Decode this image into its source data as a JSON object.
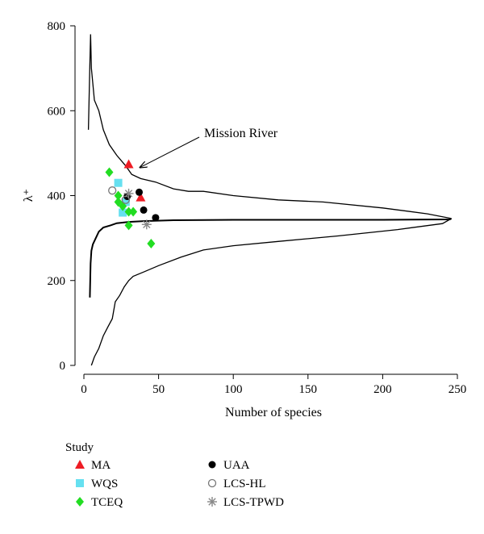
{
  "chart_data": {
    "type": "scatter",
    "xlabel": "Number of species",
    "ylabel": "λ⁺",
    "xlim": [
      0,
      250
    ],
    "ylim": [
      0,
      800
    ],
    "xticks": [
      "0",
      "50",
      "100",
      "150",
      "200",
      "250"
    ],
    "yticks": [
      "0",
      "200",
      "400",
      "600",
      "800"
    ],
    "annotation": {
      "text": "Mission River",
      "points_to": [
        30,
        472
      ]
    },
    "mean_line": [
      [
        4,
        160
      ],
      [
        4.5,
        240
      ],
      [
        5,
        270
      ],
      [
        6,
        285
      ],
      [
        8,
        300
      ],
      [
        10,
        315
      ],
      [
        13,
        325
      ],
      [
        18,
        330
      ],
      [
        22,
        335
      ],
      [
        30,
        338
      ],
      [
        40,
        340
      ],
      [
        60,
        342
      ],
      [
        100,
        343
      ],
      [
        150,
        343
      ],
      [
        200,
        343
      ],
      [
        245,
        344
      ],
      [
        246,
        346
      ]
    ],
    "funnel_upper": [
      [
        3,
        555
      ],
      [
        4,
        710
      ],
      [
        4.5,
        780
      ],
      [
        5,
        700
      ],
      [
        7,
        625
      ],
      [
        10,
        600
      ],
      [
        13,
        555
      ],
      [
        17,
        520
      ],
      [
        22,
        495
      ],
      [
        28,
        470
      ],
      [
        32,
        450
      ],
      [
        38,
        440
      ],
      [
        48,
        432
      ],
      [
        60,
        416
      ],
      [
        70,
        410
      ],
      [
        80,
        410
      ],
      [
        100,
        400
      ],
      [
        130,
        390
      ],
      [
        160,
        385
      ],
      [
        200,
        371
      ],
      [
        230,
        357
      ],
      [
        246,
        346
      ]
    ],
    "funnel_lower": [
      [
        5,
        0
      ],
      [
        7,
        20
      ],
      [
        10,
        40
      ],
      [
        13,
        70
      ],
      [
        16,
        90
      ],
      [
        19,
        110
      ],
      [
        21,
        150
      ],
      [
        24,
        165
      ],
      [
        27,
        185
      ],
      [
        30,
        200
      ],
      [
        33,
        210
      ],
      [
        40,
        220
      ],
      [
        50,
        235
      ],
      [
        65,
        255
      ],
      [
        80,
        272
      ],
      [
        100,
        282
      ],
      [
        130,
        292
      ],
      [
        170,
        305
      ],
      [
        210,
        320
      ],
      [
        240,
        334
      ],
      [
        246,
        346
      ]
    ],
    "series": [
      {
        "name": "MA",
        "marker": "triangle",
        "color": "#ee1c24",
        "points": [
          [
            30,
            474
          ],
          [
            38,
            396
          ]
        ]
      },
      {
        "name": "WQS",
        "marker": "square",
        "color": "#66e0f0",
        "points": [
          [
            23,
            430
          ],
          [
            26,
            360
          ],
          [
            28,
            385
          ]
        ]
      },
      {
        "name": "TCEQ",
        "marker": "diamond",
        "color": "#22dd22",
        "points": [
          [
            17,
            455
          ],
          [
            23,
            400
          ],
          [
            23,
            385
          ],
          [
            26,
            375
          ],
          [
            30,
            362
          ],
          [
            30,
            330
          ],
          [
            33,
            362
          ],
          [
            45,
            287
          ]
        ]
      },
      {
        "name": "UAA",
        "marker": "filled-circle",
        "color": "#000000",
        "points": [
          [
            37,
            408
          ],
          [
            29,
            398
          ],
          [
            40,
            366
          ],
          [
            48,
            348
          ]
        ]
      },
      {
        "name": "LCS-HL",
        "marker": "open-circle",
        "color": "#777777",
        "points": [
          [
            19,
            412
          ],
          [
            28,
            390
          ]
        ]
      },
      {
        "name": "LCS-TPWD",
        "marker": "star",
        "color": "#888888",
        "points": [
          [
            30,
            405
          ],
          [
            42,
            332
          ]
        ]
      }
    ],
    "legend": {
      "title": "Study",
      "placement": "bottom-left"
    }
  }
}
